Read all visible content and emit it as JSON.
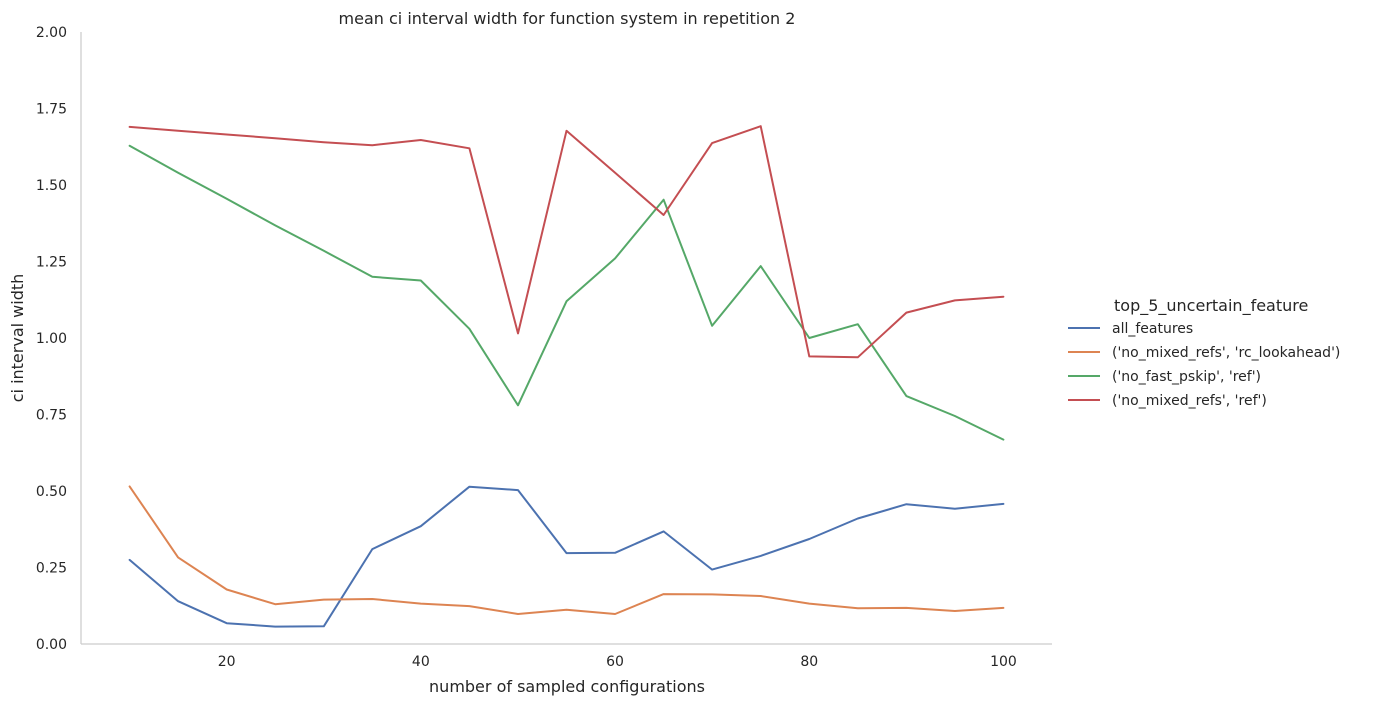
{
  "chart_data": {
    "type": "line",
    "title": "mean ci interval width for function system in repetition 2",
    "xlabel": "number of sampled configurations",
    "ylabel": "ci interval width",
    "xlim": [
      5,
      105
    ],
    "ylim": [
      0,
      2.0
    ],
    "x_ticks": [
      20,
      40,
      60,
      80,
      100
    ],
    "x_tick_labels": [
      "20",
      "40",
      "60",
      "80",
      "100"
    ],
    "y_ticks": [
      0,
      0.25,
      0.5,
      0.75,
      1.0,
      1.25,
      1.5,
      1.75,
      2.0
    ],
    "y_tick_labels": [
      "0.00",
      "0.25",
      "0.50",
      "0.75",
      "1.00",
      "1.25",
      "1.50",
      "1.75",
      "2.00"
    ],
    "grid": false,
    "legend_placement": "right",
    "legend_title": "top_5_uncertain_feature",
    "x": [
      10,
      15,
      20,
      25,
      30,
      35,
      40,
      45,
      50,
      55,
      60,
      65,
      70,
      75,
      80,
      85,
      90,
      95,
      100
    ],
    "series": [
      {
        "name": "all_features",
        "color": "#4c72b0",
        "values": [
          0.275,
          0.14,
          0.068,
          0.057,
          0.058,
          0.31,
          0.385,
          0.514,
          0.503,
          0.297,
          0.298,
          0.368,
          0.243,
          0.288,
          0.343,
          0.41,
          0.457,
          0.442,
          0.458
        ]
      },
      {
        "name": "('no_mixed_refs', 'rc_lookahead')",
        "color": "#dd8452",
        "values": [
          0.515,
          0.283,
          0.178,
          0.13,
          0.145,
          0.147,
          0.132,
          0.124,
          0.098,
          0.112,
          0.098,
          0.163,
          0.162,
          0.157,
          0.132,
          0.117,
          0.118,
          0.108,
          0.118
        ]
      },
      {
        "name": "('no_fast_pskip', 'ref')",
        "color": "#55a868",
        "values": [
          1.628,
          1.54,
          1.455,
          1.368,
          1.285,
          1.2,
          1.188,
          1.03,
          0.78,
          1.12,
          1.26,
          1.452,
          1.04,
          1.235,
          1.0,
          1.045,
          0.81,
          0.745,
          0.668
        ]
      },
      {
        "name": "('no_mixed_refs', 'ref')",
        "color": "#c44e52",
        "values": [
          1.69,
          1.677,
          1.665,
          1.653,
          1.64,
          1.63,
          1.647,
          1.62,
          1.015,
          1.677,
          1.54,
          1.402,
          1.637,
          1.692,
          0.94,
          0.937,
          1.083,
          1.123,
          1.135
        ]
      }
    ]
  }
}
